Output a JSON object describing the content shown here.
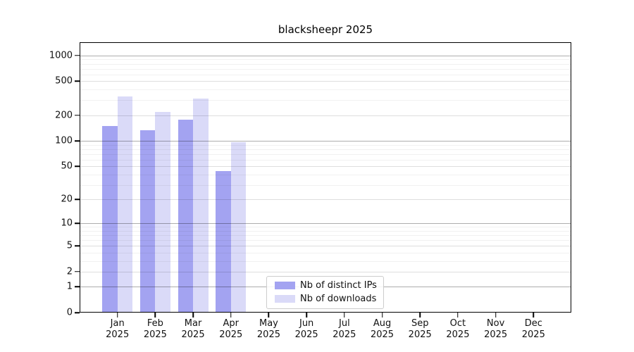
{
  "title": "blacksheepr 2025",
  "chart_data": {
    "type": "bar",
    "title": "blacksheepr 2025",
    "x_months": [
      "Jan",
      "Feb",
      "Mar",
      "Apr",
      "May",
      "Jun",
      "Jul",
      "Aug",
      "Sep",
      "Oct",
      "Nov",
      "Dec"
    ],
    "x_year": "2025",
    "series": [
      {
        "name": "Nb of distinct IPs",
        "color": "#a3a3f1",
        "values": [
          150,
          133,
          177,
          44,
          0,
          0,
          0,
          0,
          0,
          0,
          0,
          0
        ]
      },
      {
        "name": "Nb of downloads",
        "color": "#dadaf8",
        "values": [
          330,
          220,
          315,
          97,
          0,
          0,
          0,
          0,
          0,
          0,
          0,
          0
        ]
      }
    ],
    "yscale": "log10(value+1)",
    "yticks": [
      0,
      1,
      2,
      5,
      10,
      20,
      50,
      100,
      200,
      500,
      1000
    ],
    "ylim": [
      0,
      1430
    ],
    "xlabel": "",
    "ylabel": "",
    "grid": true,
    "grid_on_top_of_bars": true,
    "legend_location": "inside-bottom-center"
  },
  "colors": {
    "distinct_ips_bar": "#a3a3f1",
    "downloads_bar": "#dadaf8",
    "background": "#ffffff",
    "axis_frame": "#000000"
  }
}
